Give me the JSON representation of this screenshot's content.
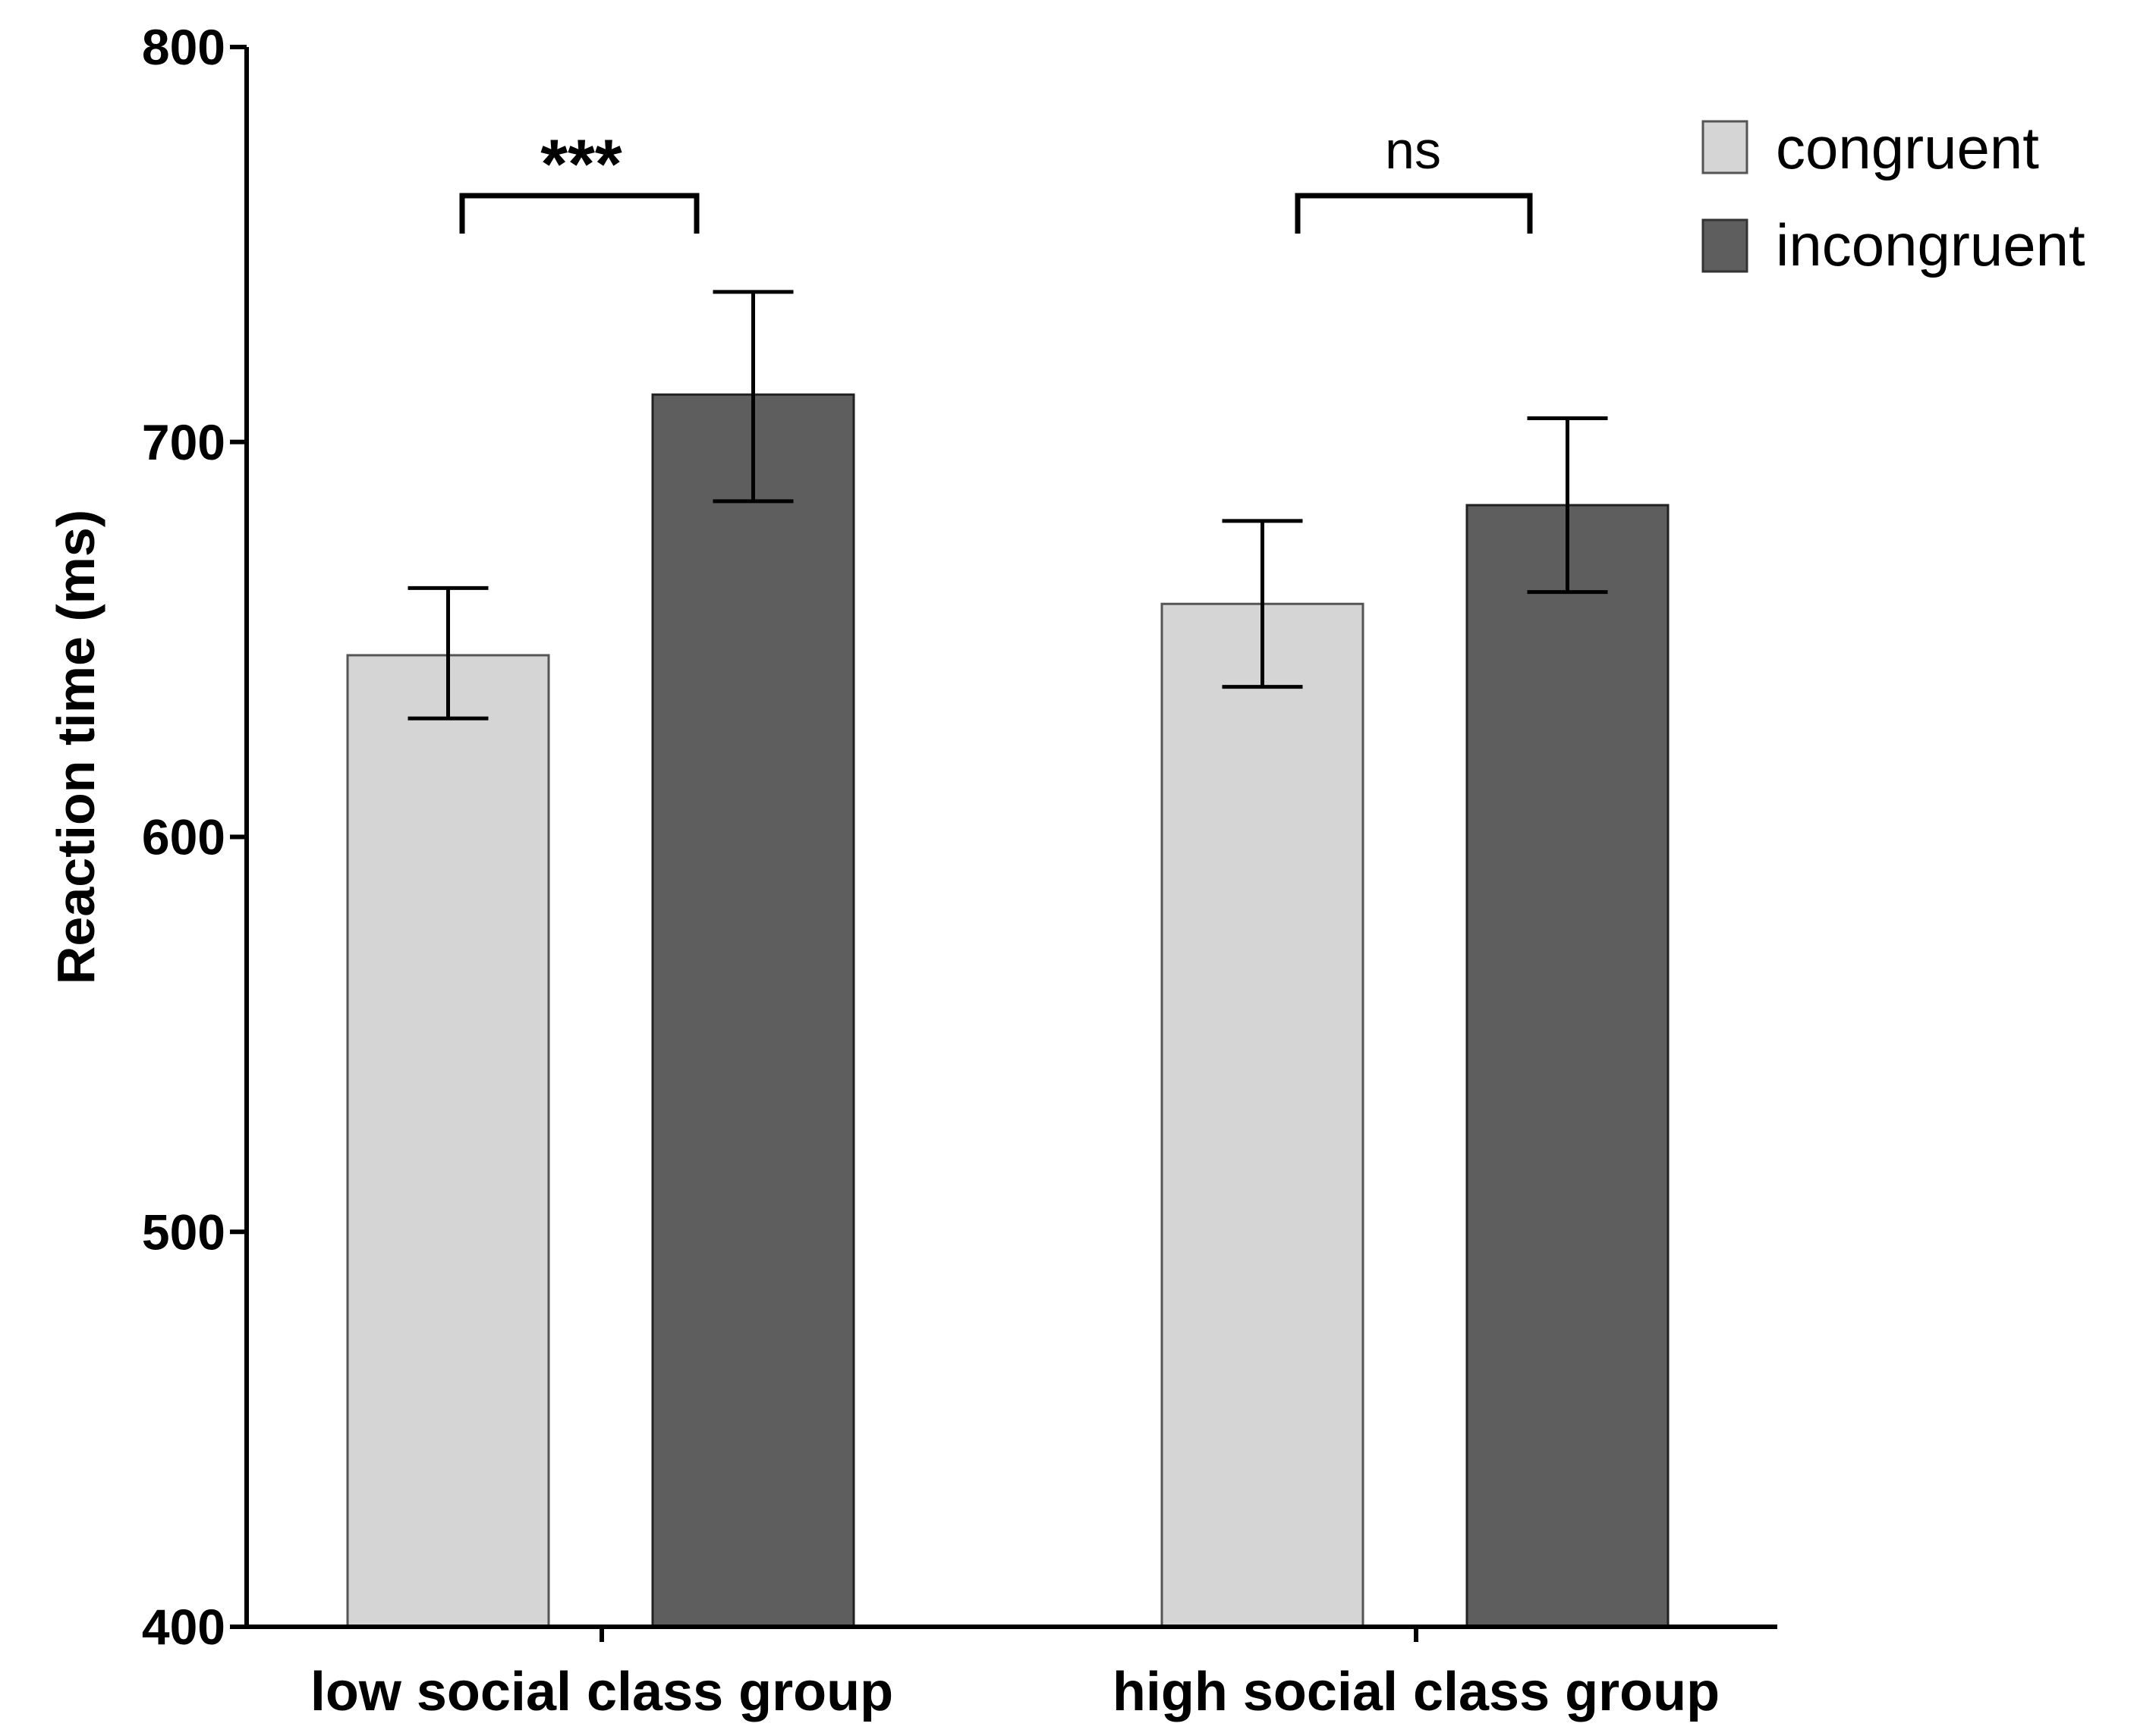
{
  "chart_data": {
    "type": "bar",
    "title": "",
    "xlabel": "",
    "ylabel": "Reaction time (ms)",
    "ylim": [
      400,
      800
    ],
    "yticks": [
      400,
      500,
      600,
      700,
      800
    ],
    "grid": false,
    "legend_position": "top-right",
    "categories": [
      "low social class group",
      "high social class group"
    ],
    "series": [
      {
        "name": "congruent",
        "color": "#d5d5d5",
        "values": [
          646,
          659
        ],
        "error_low": [
          630,
          638
        ],
        "error_high": [
          663,
          680
        ]
      },
      {
        "name": "incongruent",
        "color": "#5e5e5e",
        "values": [
          712,
          684
        ],
        "error_low": [
          685,
          662
        ],
        "error_high": [
          738,
          706
        ]
      }
    ],
    "annotations": [
      {
        "category_index": 0,
        "text": "***"
      },
      {
        "category_index": 1,
        "text": "ns"
      }
    ]
  }
}
